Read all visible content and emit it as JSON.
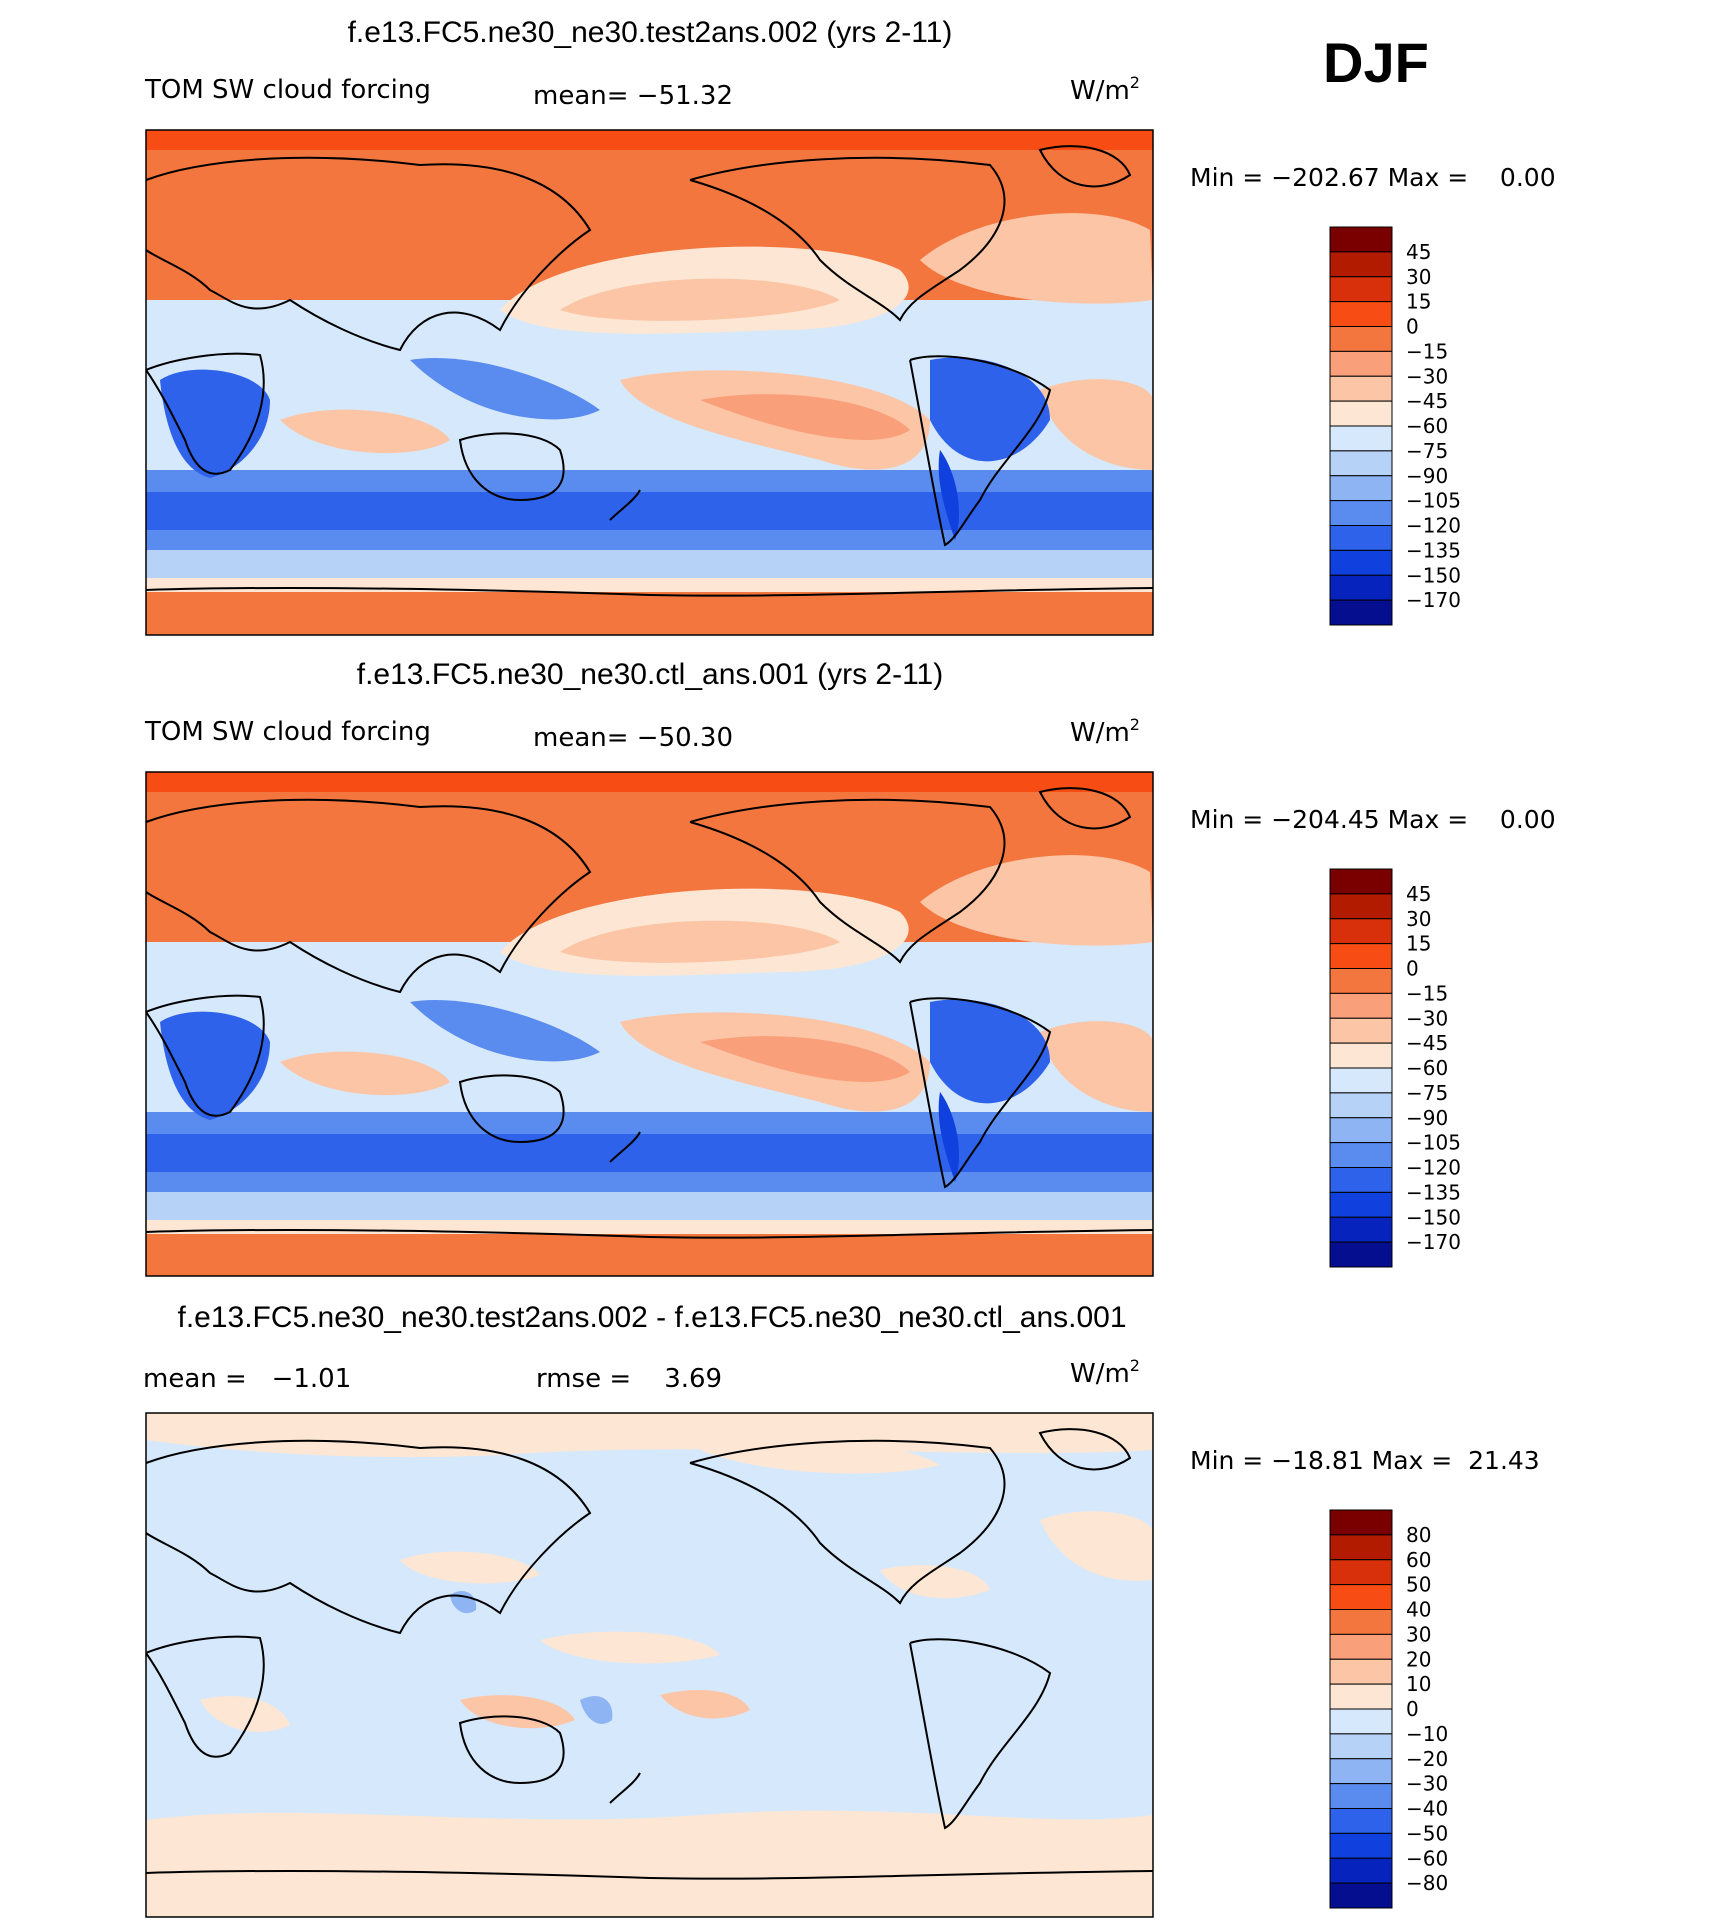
{
  "season": "DJF",
  "units_main": "W/m",
  "units_exp": "2",
  "colors_main": [
    "#7a0000",
    "#b31b00",
    "#d8300b",
    "#f74c14",
    "#f4763f",
    "#f9a07a",
    "#fcc5a6",
    "#fde7d4",
    "#d6e8fb",
    "#b7d2f7",
    "#8fb4f4",
    "#5a8cf0",
    "#2f62ea",
    "#1040de",
    "#0624bd",
    "#050e8f"
  ],
  "colors_diff": [
    "#7a0000",
    "#b31b00",
    "#d8300b",
    "#f74c14",
    "#f4763f",
    "#f9a07a",
    "#fcc5a6",
    "#fde7d4",
    "#d6e8fb",
    "#b7d2f7",
    "#8fb4f4",
    "#5a8cf0",
    "#2f62ea",
    "#1040de",
    "#0624bd",
    "#050e8f"
  ],
  "chart_data": [
    {
      "type": "heatmap",
      "title": "f.e13.FC5.ne30_ne30.test2ans.002 (yrs 2-11)",
      "left_label": "TOM SW cloud forcing",
      "stat_label": "mean= −51.32",
      "range_label": "Min = −202.67 Max =    0.00",
      "min": -202.67,
      "max": 0.0,
      "mean": -51.32,
      "colorbar_ticks": [
        "45",
        "30",
        "15",
        "0",
        "−15",
        "−30",
        "−45",
        "−60",
        "−75",
        "−90",
        "−105",
        "−120",
        "−135",
        "−150",
        "−170"
      ],
      "colormap": "main"
    },
    {
      "type": "heatmap",
      "title": "f.e13.FC5.ne30_ne30.ctl_ans.001 (yrs 2-11)",
      "left_label": "TOM SW cloud forcing",
      "stat_label": "mean= −50.30",
      "range_label": "Min = −204.45 Max =    0.00",
      "min": -204.45,
      "max": 0.0,
      "mean": -50.3,
      "colorbar_ticks": [
        "45",
        "30",
        "15",
        "0",
        "−15",
        "−30",
        "−45",
        "−60",
        "−75",
        "−90",
        "−105",
        "−120",
        "−135",
        "−150",
        "−170"
      ],
      "colormap": "main"
    },
    {
      "type": "heatmap",
      "title": "f.e13.FC5.ne30_ne30.test2ans.002 - f.e13.FC5.ne30_ne30.ctl_ans.001",
      "left_label": "mean =   −1.01",
      "stat_label": "rmse =    3.69",
      "range_label": "Min = −18.81 Max =  21.43",
      "min": -18.81,
      "max": 21.43,
      "mean": -1.01,
      "rmse": 3.69,
      "colorbar_ticks": [
        "80",
        "60",
        "50",
        "40",
        "30",
        "20",
        "10",
        "0",
        "−10",
        "−20",
        "−30",
        "−40",
        "−50",
        "−60",
        "−80"
      ],
      "colormap": "diff"
    }
  ]
}
